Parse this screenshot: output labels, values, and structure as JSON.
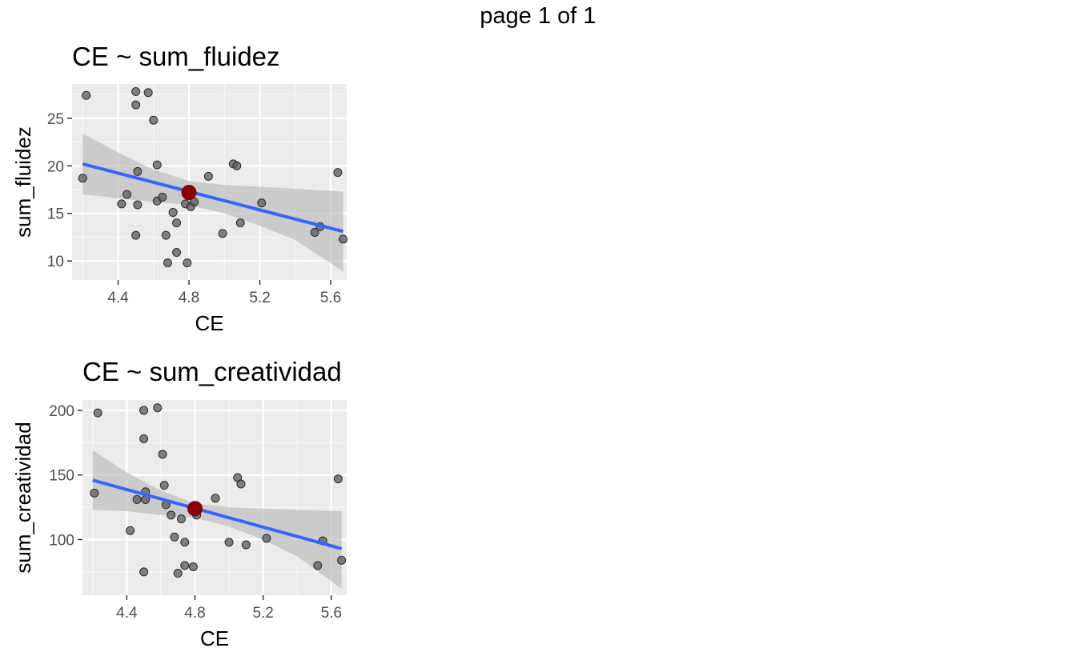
{
  "page_label": "page 1 of 1",
  "chart_data": [
    {
      "type": "scatter",
      "title": "CE ~ sum_fluidez",
      "xlabel": "CE",
      "ylabel": "sum_fluidez",
      "xlim": [
        4.14,
        5.69
      ],
      "ylim": [
        8.0,
        28.6
      ],
      "xticks": [
        4.4,
        4.8,
        5.2,
        5.6
      ],
      "xtick_labels": [
        "4.4",
        "4.8",
        "5.2",
        "5.6"
      ],
      "yticks": [
        10,
        15,
        20,
        25
      ],
      "ytick_labels": [
        "10",
        "15",
        "20",
        "25"
      ],
      "grid": true,
      "background": "#ebebeb",
      "point_color": "#595959",
      "line_color": "#3366ff",
      "band_color": "#bdbdbd",
      "highlight_color": "#8b0000",
      "points": [
        [
          4.2,
          18.7
        ],
        [
          4.22,
          27.4
        ],
        [
          4.42,
          16.0
        ],
        [
          4.45,
          17.0
        ],
        [
          4.5,
          12.7
        ],
        [
          4.5,
          26.4
        ],
        [
          4.5,
          27.8
        ],
        [
          4.51,
          19.4
        ],
        [
          4.51,
          15.9
        ],
        [
          4.57,
          27.7
        ],
        [
          4.6,
          24.8
        ],
        [
          4.62,
          20.1
        ],
        [
          4.62,
          16.3
        ],
        [
          4.65,
          16.7
        ],
        [
          4.67,
          12.7
        ],
        [
          4.68,
          9.8
        ],
        [
          4.71,
          15.1
        ],
        [
          4.73,
          14.0
        ],
        [
          4.73,
          10.9
        ],
        [
          4.78,
          16.0
        ],
        [
          4.79,
          9.8
        ],
        [
          4.81,
          15.7
        ],
        [
          4.83,
          16.2
        ],
        [
          4.91,
          18.9
        ],
        [
          4.99,
          12.9
        ],
        [
          5.05,
          20.2
        ],
        [
          5.07,
          20.0
        ],
        [
          5.09,
          14.0
        ],
        [
          5.21,
          16.1
        ],
        [
          5.51,
          13.0
        ],
        [
          5.54,
          13.6
        ],
        [
          5.64,
          19.3
        ],
        [
          5.67,
          12.3
        ]
      ],
      "fit_line": {
        "x": [
          4.2,
          5.67
        ],
        "y": [
          20.2,
          13.1
        ]
      },
      "confidence_band": {
        "x": [
          4.2,
          4.4,
          4.6,
          4.8,
          5.0,
          5.2,
          5.4,
          5.67
        ],
        "upper": [
          23.4,
          21.4,
          19.6,
          18.4,
          18.0,
          17.8,
          17.6,
          17.3
        ],
        "lower": [
          17.0,
          16.6,
          16.2,
          15.9,
          15.0,
          13.7,
          12.2,
          8.9
        ]
      },
      "highlight_point": [
        4.8,
        17.2
      ]
    },
    {
      "type": "scatter",
      "title": "CE ~ sum_creatividad",
      "xlabel": "CE",
      "ylabel": "sum_creatividad",
      "xlim": [
        4.14,
        5.69
      ],
      "ylim": [
        57,
        208
      ],
      "xticks": [
        4.4,
        4.8,
        5.2,
        5.6
      ],
      "xtick_labels": [
        "4.4",
        "4.8",
        "5.2",
        "5.6"
      ],
      "yticks": [
        100,
        150,
        200
      ],
      "ytick_labels": [
        "100",
        "150",
        "200"
      ],
      "grid": true,
      "background": "#ebebeb",
      "point_color": "#595959",
      "line_color": "#3366ff",
      "band_color": "#bdbdbd",
      "highlight_color": "#8b0000",
      "points": [
        [
          4.21,
          136
        ],
        [
          4.23,
          198
        ],
        [
          4.42,
          107
        ],
        [
          4.46,
          131
        ],
        [
          4.5,
          75
        ],
        [
          4.5,
          178
        ],
        [
          4.5,
          200
        ],
        [
          4.51,
          131
        ],
        [
          4.51,
          137
        ],
        [
          4.58,
          202
        ],
        [
          4.61,
          166
        ],
        [
          4.62,
          142
        ],
        [
          4.63,
          127
        ],
        [
          4.66,
          119
        ],
        [
          4.68,
          102
        ],
        [
          4.7,
          74
        ],
        [
          4.72,
          116
        ],
        [
          4.74,
          98
        ],
        [
          4.74,
          80
        ],
        [
          4.79,
          79
        ],
        [
          4.8,
          121
        ],
        [
          4.81,
          119
        ],
        [
          4.92,
          132
        ],
        [
          5.0,
          98
        ],
        [
          5.05,
          148
        ],
        [
          5.07,
          143
        ],
        [
          5.1,
          96
        ],
        [
          5.22,
          101
        ],
        [
          5.52,
          80
        ],
        [
          5.55,
          99
        ],
        [
          5.64,
          147
        ],
        [
          5.66,
          84
        ]
      ],
      "fit_line": {
        "x": [
          4.2,
          5.66
        ],
        "y": [
          146,
          93
        ]
      },
      "confidence_band": {
        "x": [
          4.2,
          4.4,
          4.6,
          4.8,
          5.0,
          5.2,
          5.4,
          5.66
        ],
        "upper": [
          169,
          152,
          138,
          128,
          125,
          124,
          123,
          122
        ],
        "lower": [
          123,
          122,
          119,
          117,
          110,
          100,
          87,
          62
        ]
      },
      "highlight_point": [
        4.8,
        124
      ]
    }
  ]
}
